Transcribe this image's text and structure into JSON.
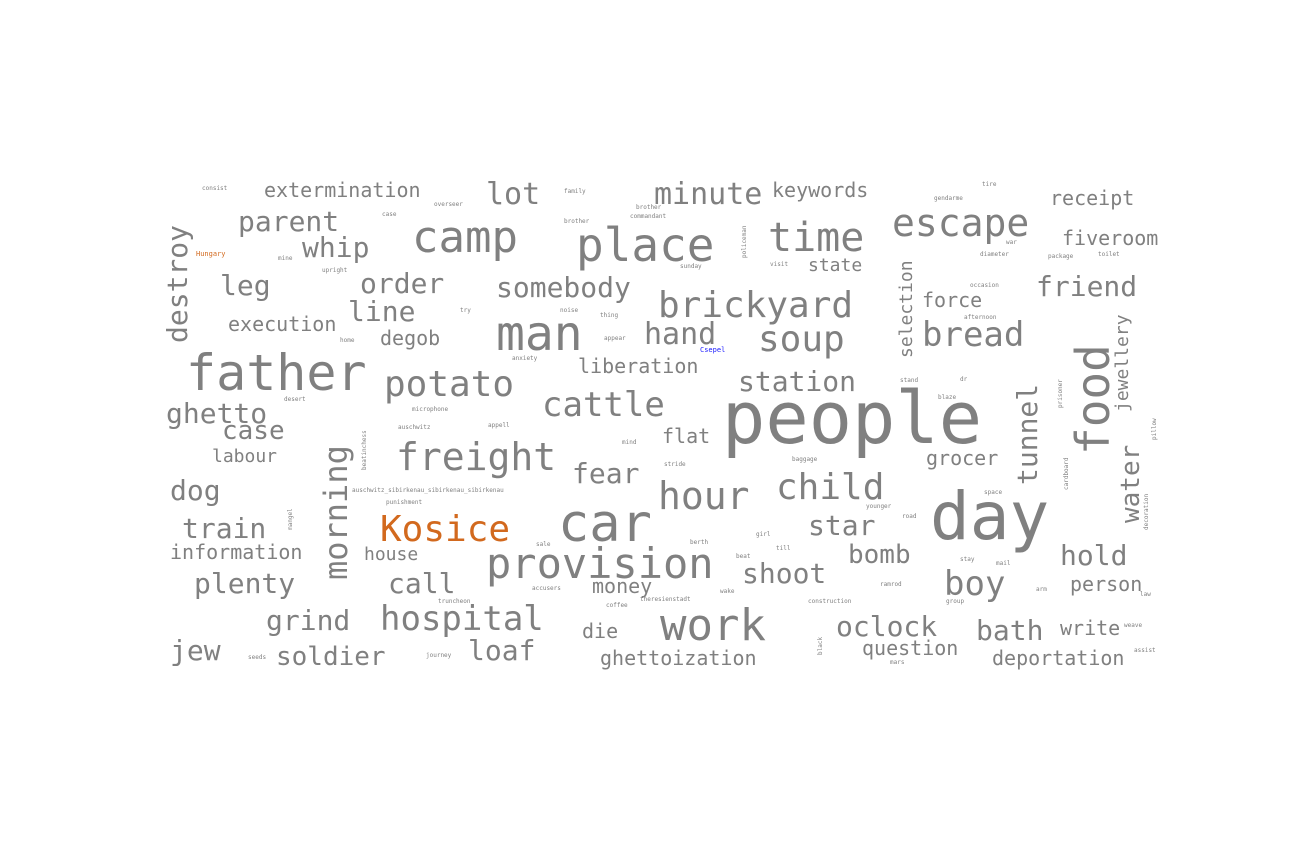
{
  "colors": {
    "background": "#ffffff",
    "default": "#808080",
    "orange": "#d2691e",
    "blue": "#1a1aff"
  },
  "words": [
    {
      "text": "people",
      "size": 72
    },
    {
      "text": "day",
      "size": 66
    },
    {
      "text": "car",
      "size": 52
    },
    {
      "text": "father",
      "size": 50
    },
    {
      "text": "man",
      "size": 48
    },
    {
      "text": "place",
      "size": 46
    },
    {
      "text": "food",
      "size": 46,
      "vertical": true
    },
    {
      "text": "camp",
      "size": 44
    },
    {
      "text": "work",
      "size": 44
    },
    {
      "text": "provision",
      "size": 42
    },
    {
      "text": "time",
      "size": 40
    },
    {
      "text": "escape",
      "size": 38
    },
    {
      "text": "hour",
      "size": 38
    },
    {
      "text": "freight",
      "size": 38
    },
    {
      "text": "brickyard",
      "size": 36
    },
    {
      "text": "Kosice",
      "size": 36,
      "color": "orange"
    },
    {
      "text": "potato",
      "size": 36
    },
    {
      "text": "child",
      "size": 36
    },
    {
      "text": "soup",
      "size": 36
    },
    {
      "text": "cattle",
      "size": 34
    },
    {
      "text": "hospital",
      "size": 34
    },
    {
      "text": "bread",
      "size": 34
    },
    {
      "text": "boy",
      "size": 34
    },
    {
      "text": "morning",
      "size": 32,
      "vertical": true
    },
    {
      "text": "destroy",
      "size": 28,
      "vertical": true
    },
    {
      "text": "minute",
      "size": 30
    },
    {
      "text": "somebody",
      "size": 28
    },
    {
      "text": "hand",
      "size": 30
    },
    {
      "text": "lot",
      "size": 30
    },
    {
      "text": "whip",
      "size": 28
    },
    {
      "text": "parent",
      "size": 28
    },
    {
      "text": "station",
      "size": 28
    },
    {
      "text": "fear",
      "size": 28
    },
    {
      "text": "star",
      "size": 28
    },
    {
      "text": "shoot",
      "size": 28
    },
    {
      "text": "call",
      "size": 28
    },
    {
      "text": "plenty",
      "size": 28
    },
    {
      "text": "train",
      "size": 28
    },
    {
      "text": "dog",
      "size": 28
    },
    {
      "text": "ghetto",
      "size": 28
    },
    {
      "text": "leg",
      "size": 28
    },
    {
      "text": "order",
      "size": 28
    },
    {
      "text": "line",
      "size": 28
    },
    {
      "text": "grind",
      "size": 28
    },
    {
      "text": "loaf",
      "size": 28
    },
    {
      "text": "oclock",
      "size": 28
    },
    {
      "text": "bath",
      "size": 28
    },
    {
      "text": "hold",
      "size": 28
    },
    {
      "text": "friend",
      "size": 28
    },
    {
      "text": "tunnel",
      "size": 28,
      "vertical": true
    },
    {
      "text": "water",
      "size": 26,
      "vertical": true
    },
    {
      "text": "bomb",
      "size": 26
    },
    {
      "text": "case",
      "size": 26
    },
    {
      "text": "jew",
      "size": 28
    },
    {
      "text": "soldier",
      "size": 26
    },
    {
      "text": "keywords",
      "size": 20
    },
    {
      "text": "extermination",
      "size": 20
    },
    {
      "text": "receipt",
      "size": 20
    },
    {
      "text": "fiveroom",
      "size": 20
    },
    {
      "text": "state",
      "size": 18
    },
    {
      "text": "force",
      "size": 20
    },
    {
      "text": "selection",
      "size": 18,
      "vertical": true
    },
    {
      "text": "jewellery",
      "size": 18,
      "vertical": true
    },
    {
      "text": "execution",
      "size": 20
    },
    {
      "text": "degob",
      "size": 20
    },
    {
      "text": "liberation",
      "size": 20
    },
    {
      "text": "flat",
      "size": 20
    },
    {
      "text": "grocer",
      "size": 20
    },
    {
      "text": "labour",
      "size": 18
    },
    {
      "text": "information",
      "size": 20
    },
    {
      "text": "house",
      "size": 18
    },
    {
      "text": "money",
      "size": 20
    },
    {
      "text": "person",
      "size": 20
    },
    {
      "text": "write",
      "size": 20
    },
    {
      "text": "die",
      "size": 20
    },
    {
      "text": "ghettoization",
      "size": 20
    },
    {
      "text": "question",
      "size": 20
    },
    {
      "text": "deportation",
      "size": 20
    },
    {
      "text": "consist",
      "size": 6
    },
    {
      "text": "family",
      "size": 6
    },
    {
      "text": "overseer",
      "size": 6
    },
    {
      "text": "brother",
      "size": 6
    },
    {
      "text": "commandant",
      "size": 6
    },
    {
      "text": "gendarme",
      "size": 6
    },
    {
      "text": "tire",
      "size": 6
    },
    {
      "text": "case",
      "size": 6
    },
    {
      "text": "policeman",
      "size": 6,
      "vertical": true
    },
    {
      "text": "Hungary",
      "size": 7,
      "color": "orange"
    },
    {
      "text": "mine",
      "size": 6
    },
    {
      "text": "upright",
      "size": 6
    },
    {
      "text": "sunday",
      "size": 6
    },
    {
      "text": "visit",
      "size": 6
    },
    {
      "text": "war",
      "size": 6
    },
    {
      "text": "diameter",
      "size": 6
    },
    {
      "text": "package",
      "size": 6
    },
    {
      "text": "toilet",
      "size": 6
    },
    {
      "text": "brother",
      "size": 6
    },
    {
      "text": "noise",
      "size": 6
    },
    {
      "text": "thing",
      "size": 6
    },
    {
      "text": "appear",
      "size": 6
    },
    {
      "text": "occasion",
      "size": 6
    },
    {
      "text": "afternoon",
      "size": 6
    },
    {
      "text": "try",
      "size": 6
    },
    {
      "text": "home",
      "size": 6
    },
    {
      "text": "anxiety",
      "size": 6
    },
    {
      "text": "Csepel",
      "size": 7,
      "color": "blue"
    },
    {
      "text": "stand",
      "size": 6
    },
    {
      "text": "dr",
      "size": 6
    },
    {
      "text": "desert",
      "size": 6
    },
    {
      "text": "microphone",
      "size": 6
    },
    {
      "text": "blaze",
      "size": 6
    },
    {
      "text": "auschwitz",
      "size": 6
    },
    {
      "text": "appell",
      "size": 6
    },
    {
      "text": "mind",
      "size": 6
    },
    {
      "text": "beatinchess",
      "size": 6,
      "vertical": true
    },
    {
      "text": "prisoner",
      "size": 6,
      "vertical": true
    },
    {
      "text": "baggage",
      "size": 6
    },
    {
      "text": "stride",
      "size": 6
    },
    {
      "text": "cardboard",
      "size": 6,
      "vertical": true
    },
    {
      "text": "pillow",
      "size": 6,
      "vertical": true
    },
    {
      "text": "auschwitz_sibirkenau_sibirkenau_sibirkenau",
      "size": 6
    },
    {
      "text": "punishment",
      "size": 6
    },
    {
      "text": "younger",
      "size": 6
    },
    {
      "text": "space",
      "size": 6
    },
    {
      "text": "mangel",
      "size": 6,
      "vertical": true
    },
    {
      "text": "road",
      "size": 6
    },
    {
      "text": "decoration",
      "size": 6,
      "vertical": true
    },
    {
      "text": "girl",
      "size": 6
    },
    {
      "text": "berth",
      "size": 6
    },
    {
      "text": "sale",
      "size": 6
    },
    {
      "text": "till",
      "size": 6
    },
    {
      "text": "beat",
      "size": 6
    },
    {
      "text": "stay",
      "size": 6
    },
    {
      "text": "mail",
      "size": 6
    },
    {
      "text": "ramrod",
      "size": 6
    },
    {
      "text": "arm",
      "size": 6
    },
    {
      "text": "group",
      "size": 6
    },
    {
      "text": "law",
      "size": 6
    },
    {
      "text": "truncheon",
      "size": 6
    },
    {
      "text": "accusers",
      "size": 6
    },
    {
      "text": "coffee",
      "size": 6
    },
    {
      "text": "theresienstadt",
      "size": 6
    },
    {
      "text": "wake",
      "size": 6
    },
    {
      "text": "construction",
      "size": 6
    },
    {
      "text": "black",
      "size": 6,
      "vertical": true
    },
    {
      "text": "seeds",
      "size": 6
    },
    {
      "text": "journey",
      "size": 6
    },
    {
      "text": "mars",
      "size": 6
    },
    {
      "text": "assist",
      "size": 6
    },
    {
      "text": "weave",
      "size": 6
    }
  ]
}
